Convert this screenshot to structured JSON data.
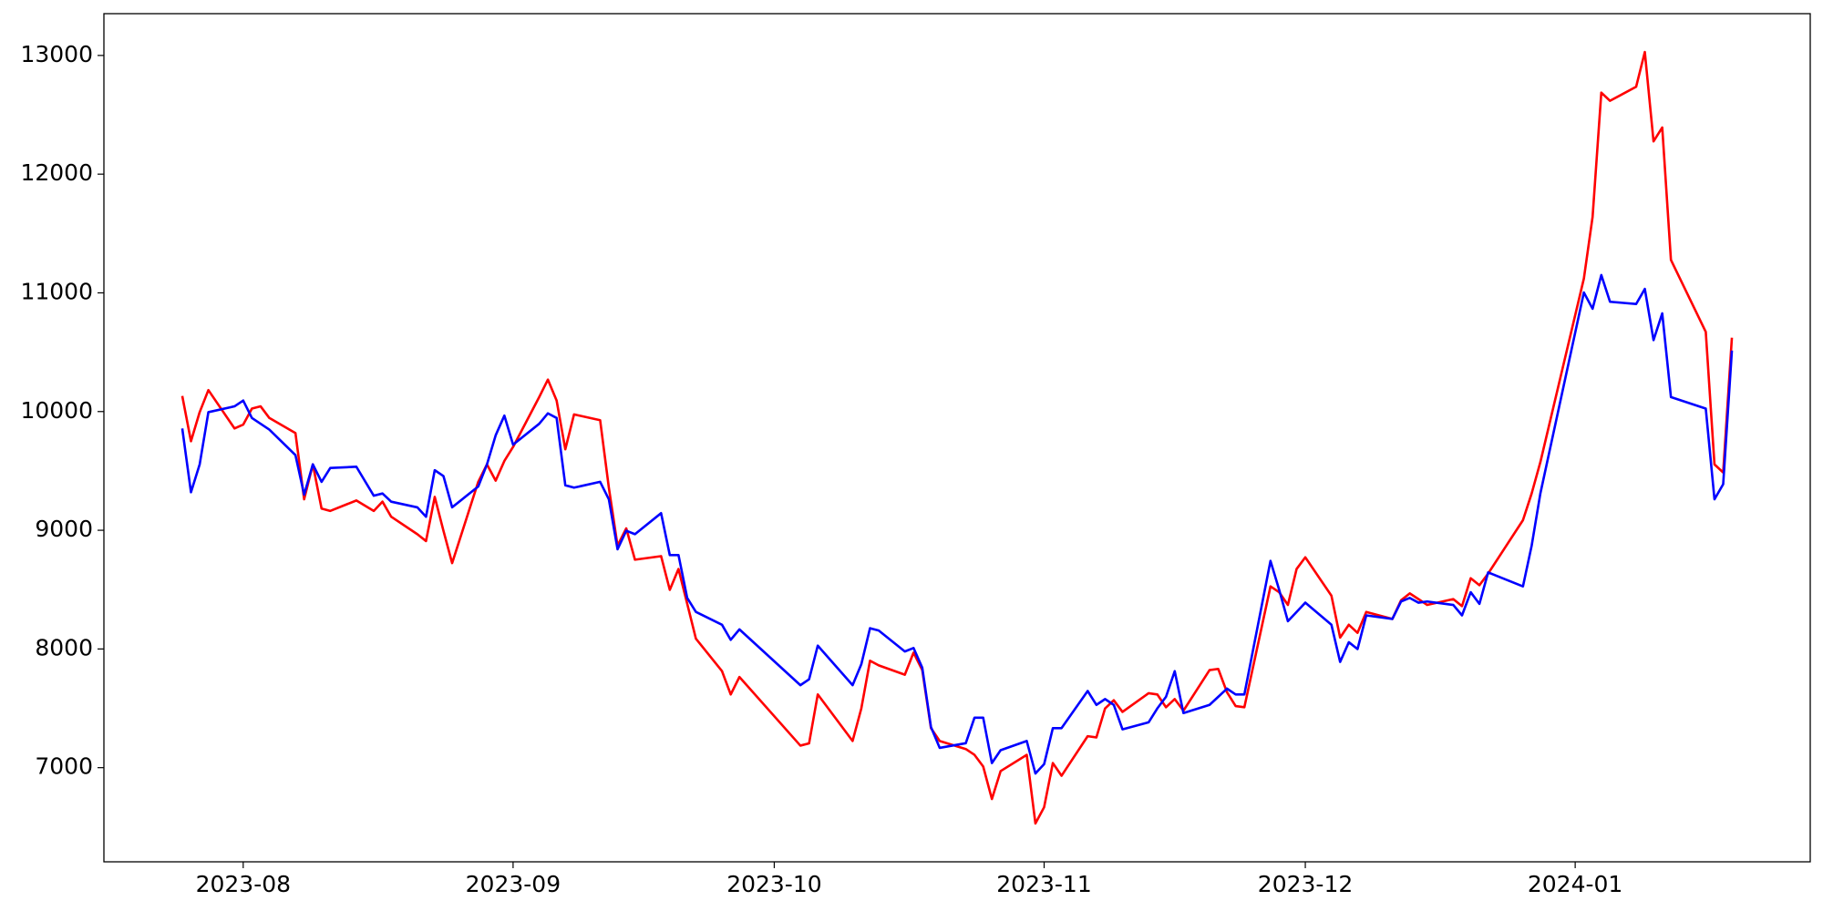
{
  "chart_data": {
    "type": "line",
    "x": [
      "2023-07-25",
      "2023-07-26",
      "2023-07-27",
      "2023-07-28",
      "2023-07-31",
      "2023-08-01",
      "2023-08-02",
      "2023-08-03",
      "2023-08-04",
      "2023-08-07",
      "2023-08-08",
      "2023-08-09",
      "2023-08-10",
      "2023-08-11",
      "2023-08-14",
      "2023-08-16",
      "2023-08-17",
      "2023-08-18",
      "2023-08-21",
      "2023-08-22",
      "2023-08-23",
      "2023-08-24",
      "2023-08-25",
      "2023-08-28",
      "2023-08-29",
      "2023-08-30",
      "2023-08-31",
      "2023-09-01",
      "2023-09-04",
      "2023-09-05",
      "2023-09-06",
      "2023-09-07",
      "2023-09-08",
      "2023-09-11",
      "2023-09-12",
      "2023-09-13",
      "2023-09-14",
      "2023-09-15",
      "2023-09-18",
      "2023-09-19",
      "2023-09-20",
      "2023-09-21",
      "2023-09-22",
      "2023-09-25",
      "2023-09-26",
      "2023-09-27",
      "2023-10-04",
      "2023-10-05",
      "2023-10-06",
      "2023-10-10",
      "2023-10-11",
      "2023-10-12",
      "2023-10-13",
      "2023-10-16",
      "2023-10-17",
      "2023-10-18",
      "2023-10-19",
      "2023-10-20",
      "2023-10-23",
      "2023-10-24",
      "2023-10-25",
      "2023-10-26",
      "2023-10-27",
      "2023-10-30",
      "2023-10-31",
      "2023-11-01",
      "2023-11-02",
      "2023-11-03",
      "2023-11-06",
      "2023-11-07",
      "2023-11-08",
      "2023-11-09",
      "2023-11-10",
      "2023-11-13",
      "2023-11-14",
      "2023-11-15",
      "2023-11-16",
      "2023-11-17",
      "2023-11-20",
      "2023-11-21",
      "2023-11-22",
      "2023-11-23",
      "2023-11-24",
      "2023-11-27",
      "2023-11-28",
      "2023-11-29",
      "2023-11-30",
      "2023-12-01",
      "2023-12-04",
      "2023-12-05",
      "2023-12-06",
      "2023-12-07",
      "2023-12-08",
      "2023-12-11",
      "2023-12-12",
      "2023-12-13",
      "2023-12-14",
      "2023-12-15",
      "2023-12-18",
      "2023-12-19",
      "2023-12-20",
      "2023-12-21",
      "2023-12-22",
      "2023-12-26",
      "2023-12-27",
      "2023-12-28",
      "2024-01-02",
      "2024-01-03",
      "2024-01-04",
      "2024-01-05",
      "2024-01-08",
      "2024-01-09",
      "2024-01-10",
      "2024-01-11",
      "2024-01-12",
      "2024-01-16",
      "2024-01-17",
      "2024-01-18",
      "2024-01-19"
    ],
    "series": [
      {
        "color": "#ff0000",
        "values": [
          10132,
          9750,
          9995,
          10181,
          9858,
          9890,
          10025,
          10044,
          9946,
          9819,
          9261,
          9555,
          9183,
          9163,
          9251,
          9163,
          9241,
          9114,
          8967,
          8909,
          9281,
          8996,
          8723,
          9408,
          9555,
          9418,
          9584,
          9702,
          10122,
          10269,
          10093,
          9682,
          9976,
          9927,
          9359,
          8870,
          9016,
          8752,
          8782,
          8498,
          8674,
          8381,
          8087,
          7813,
          7617,
          7764,
          7186,
          7205,
          7617,
          7225,
          7499,
          7901,
          7862,
          7783,
          7969,
          7822,
          7333,
          7225,
          7157,
          7108,
          7010,
          6736,
          6971,
          7108,
          6530,
          6667,
          7039,
          6932,
          7265,
          7255,
          7499,
          7568,
          7470,
          7627,
          7617,
          7509,
          7578,
          7480,
          7822,
          7832,
          7636,
          7519,
          7509,
          8527,
          8478,
          8371,
          8674,
          8772,
          8449,
          8096,
          8204,
          8136,
          8312,
          8253,
          8410,
          8468,
          8420,
          8371,
          8420,
          8361,
          8596,
          8537,
          8635,
          9085,
          9310,
          9574,
          11121,
          11640,
          12687,
          12618,
          12736,
          13029,
          12276,
          12393,
          11277,
          10671,
          9555,
          9486,
          10622
        ]
      },
      {
        "color": "#0000ff",
        "values": [
          9858,
          9320,
          9555,
          9995,
          10044,
          10093,
          9946,
          9897,
          9848,
          9633,
          9300,
          9555,
          9408,
          9525,
          9535,
          9291,
          9310,
          9241,
          9193,
          9114,
          9506,
          9457,
          9193,
          9369,
          9555,
          9800,
          9966,
          9721,
          9897,
          9985,
          9946,
          9379,
          9359,
          9408,
          9261,
          8840,
          8996,
          8967,
          9144,
          8791,
          8791,
          8430,
          8312,
          8204,
          8077,
          8165,
          7695,
          7744,
          8028,
          7695,
          7871,
          8175,
          8155,
          7979,
          8008,
          7842,
          7343,
          7167,
          7206,
          7421,
          7421,
          7039,
          7147,
          7225,
          6951,
          7030,
          7333,
          7333,
          7646,
          7529,
          7578,
          7529,
          7323,
          7382,
          7499,
          7597,
          7813,
          7460,
          7529,
          7597,
          7666,
          7617,
          7617,
          8742,
          8498,
          8234,
          8312,
          8390,
          8204,
          7891,
          8057,
          7999,
          8283,
          8253,
          8400,
          8430,
          8390,
          8400,
          8371,
          8283,
          8478,
          8380,
          8645,
          8527,
          8870,
          9310,
          11003,
          10866,
          11150,
          10925,
          10906,
          11033,
          10602,
          10827,
          10122,
          10025,
          9261,
          9388,
          10514
        ]
      }
    ],
    "xlim": [
      "2023-07-16",
      "2024-01-28"
    ],
    "xticks": [
      {
        "value": "2023-08-01",
        "label": "2023-08"
      },
      {
        "value": "2023-09-01",
        "label": "2023-09"
      },
      {
        "value": "2023-10-01",
        "label": "2023-10"
      },
      {
        "value": "2023-11-01",
        "label": "2023-11"
      },
      {
        "value": "2023-12-01",
        "label": "2023-12"
      },
      {
        "value": "2024-01-01",
        "label": "2024-01"
      }
    ],
    "ylim": [
      6207,
      13352
    ],
    "yticks": [
      7000,
      8000,
      9000,
      10000,
      11000,
      12000,
      13000
    ]
  }
}
